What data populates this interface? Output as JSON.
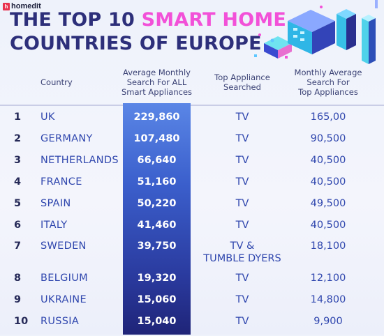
{
  "brand": {
    "logo_letter": "h",
    "name": "homedit"
  },
  "title": {
    "line1_plain": "THE TOP 10 ",
    "line1_accent": "SMART HOME",
    "line2": "COUNTRIES OF EUROPE"
  },
  "colors": {
    "title": "#2d2f7a",
    "accent": "#f251d8",
    "highlight_top": "#5a86e6",
    "highlight_bottom": "#1f2478",
    "text_blue": "#3047ae"
  },
  "chart_data": {
    "type": "table",
    "columns": [
      "",
      "Country",
      "Average Monthly Search For ALL Smart Appliances",
      "Top Appliance Searched",
      "Monthly Average Search For Top Appliances"
    ],
    "column_lines": {
      "country": [
        "Country"
      ],
      "avg": [
        "Average Monthly",
        "Search For ALL",
        "Smart Appliances"
      ],
      "top": [
        "Top Appliance",
        "Searched"
      ],
      "monthly": [
        "Monthly Average",
        "Search For",
        "Top Appliances"
      ]
    },
    "rows": [
      {
        "rank": "1",
        "country": "UK",
        "avg_search": "229,860",
        "top_appliance": [
          "TV"
        ],
        "top_search": "165,00"
      },
      {
        "rank": "2",
        "country": "GERMANY",
        "avg_search": "107,480",
        "top_appliance": [
          "TV"
        ],
        "top_search": "90,500"
      },
      {
        "rank": "3",
        "country": "NETHERLANDS",
        "avg_search": "66,640",
        "top_appliance": [
          "TV"
        ],
        "top_search": "40,500"
      },
      {
        "rank": "4",
        "country": "FRANCE",
        "avg_search": "51,160",
        "top_appliance": [
          "TV"
        ],
        "top_search": "40,500"
      },
      {
        "rank": "5",
        "country": "SPAIN",
        "avg_search": "50,220",
        "top_appliance": [
          "TV"
        ],
        "top_search": "49,500"
      },
      {
        "rank": "6",
        "country": "ITALY",
        "avg_search": "41,460",
        "top_appliance": [
          "TV"
        ],
        "top_search": "40,500"
      },
      {
        "rank": "7",
        "country": "SWEDEN",
        "avg_search": "39,750",
        "top_appliance": [
          "TV &",
          "TUMBLE DYERS"
        ],
        "top_search": "18,100"
      },
      {
        "rank": "8",
        "country": "BELGIUM",
        "avg_search": "19,320",
        "top_appliance": [
          "TV"
        ],
        "top_search": "12,100"
      },
      {
        "rank": "9",
        "country": "UKRAINE",
        "avg_search": "15,060",
        "top_appliance": [
          "TV"
        ],
        "top_search": "14,800"
      },
      {
        "rank": "10",
        "country": "RUSSIA",
        "avg_search": "15,040",
        "top_appliance": [
          "TV"
        ],
        "top_search": "9,900"
      }
    ]
  }
}
